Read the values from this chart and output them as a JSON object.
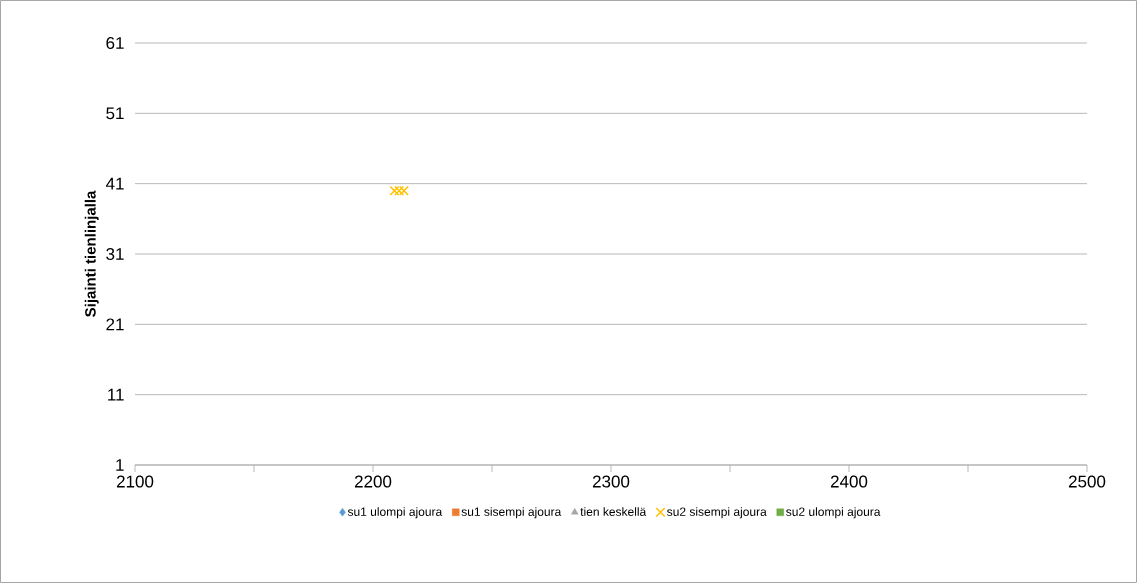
{
  "chart_data": {
    "type": "scatter",
    "ylabel": "Sijainti tienlinjalla",
    "x": [
      2209,
      2211,
      2213
    ],
    "series": [
      {
        "name": "su1 ulompi ajoura",
        "color": "#5b9bd5",
        "marker": "diamond",
        "values": [
          null,
          null,
          null
        ]
      },
      {
        "name": "su1 sisempi ajoura",
        "color": "#ed7d31",
        "marker": "square",
        "values": [
          null,
          null,
          null
        ]
      },
      {
        "name": "tien keskellä",
        "color": "#a5a5a5",
        "marker": "triangle",
        "values": [
          null,
          null,
          null
        ]
      },
      {
        "name": "su2 sisempi ajoura",
        "color": "#ffc000",
        "marker": "cross",
        "values": [
          40,
          40,
          40
        ]
      },
      {
        "name": "su2 ulompi ajoura",
        "color": "#70ad47",
        "marker": "square",
        "values": [
          null,
          null,
          null
        ]
      }
    ],
    "xlim": [
      2100,
      2500
    ],
    "xticks": [
      2100,
      {
        "value": 2150,
        "label": null
      },
      2200,
      {
        "value": 2250,
        "label": null
      },
      2300,
      {
        "value": 2350,
        "label": null
      },
      2400,
      {
        "value": 2450,
        "label": null
      },
      2500
    ],
    "ylim": [
      1,
      61
    ],
    "yticks": [
      1,
      11,
      21,
      31,
      41,
      51,
      61
    ],
    "grid": "y",
    "legend": "bottom"
  }
}
